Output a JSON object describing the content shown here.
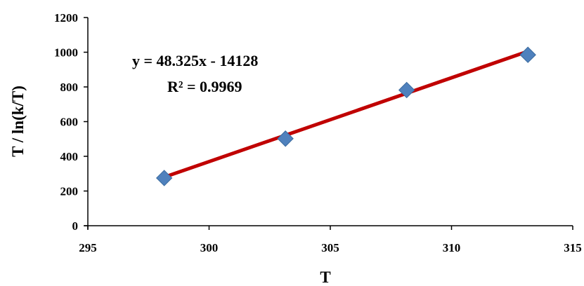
{
  "chart_data": {
    "type": "scatter",
    "title": "",
    "xlabel": "T",
    "ylabel": "T / ln(k/T)",
    "xlim": [
      295,
      315
    ],
    "ylim": [
      0,
      1200
    ],
    "xticks": [
      "295",
      "300",
      "305",
      "310",
      "315"
    ],
    "yticks": [
      "0",
      "200",
      "400",
      "600",
      "800",
      "1000",
      "1200"
    ],
    "grid": false,
    "legend": "none",
    "series": [
      {
        "kind": "points",
        "x": [
          298.15,
          303.15,
          308.15,
          313.15
        ],
        "y": [
          275,
          502,
          782,
          985
        ],
        "color": "#4F81BD",
        "marker": "diamond"
      },
      {
        "kind": "trendline",
        "slope": 48.325,
        "intercept": -14128,
        "x_range": [
          298.15,
          313.15
        ],
        "color": "#C00000"
      }
    ],
    "annotations": {
      "equation": "y = 48.325x - 14128",
      "r_squared": "R² = 0.9969"
    }
  }
}
